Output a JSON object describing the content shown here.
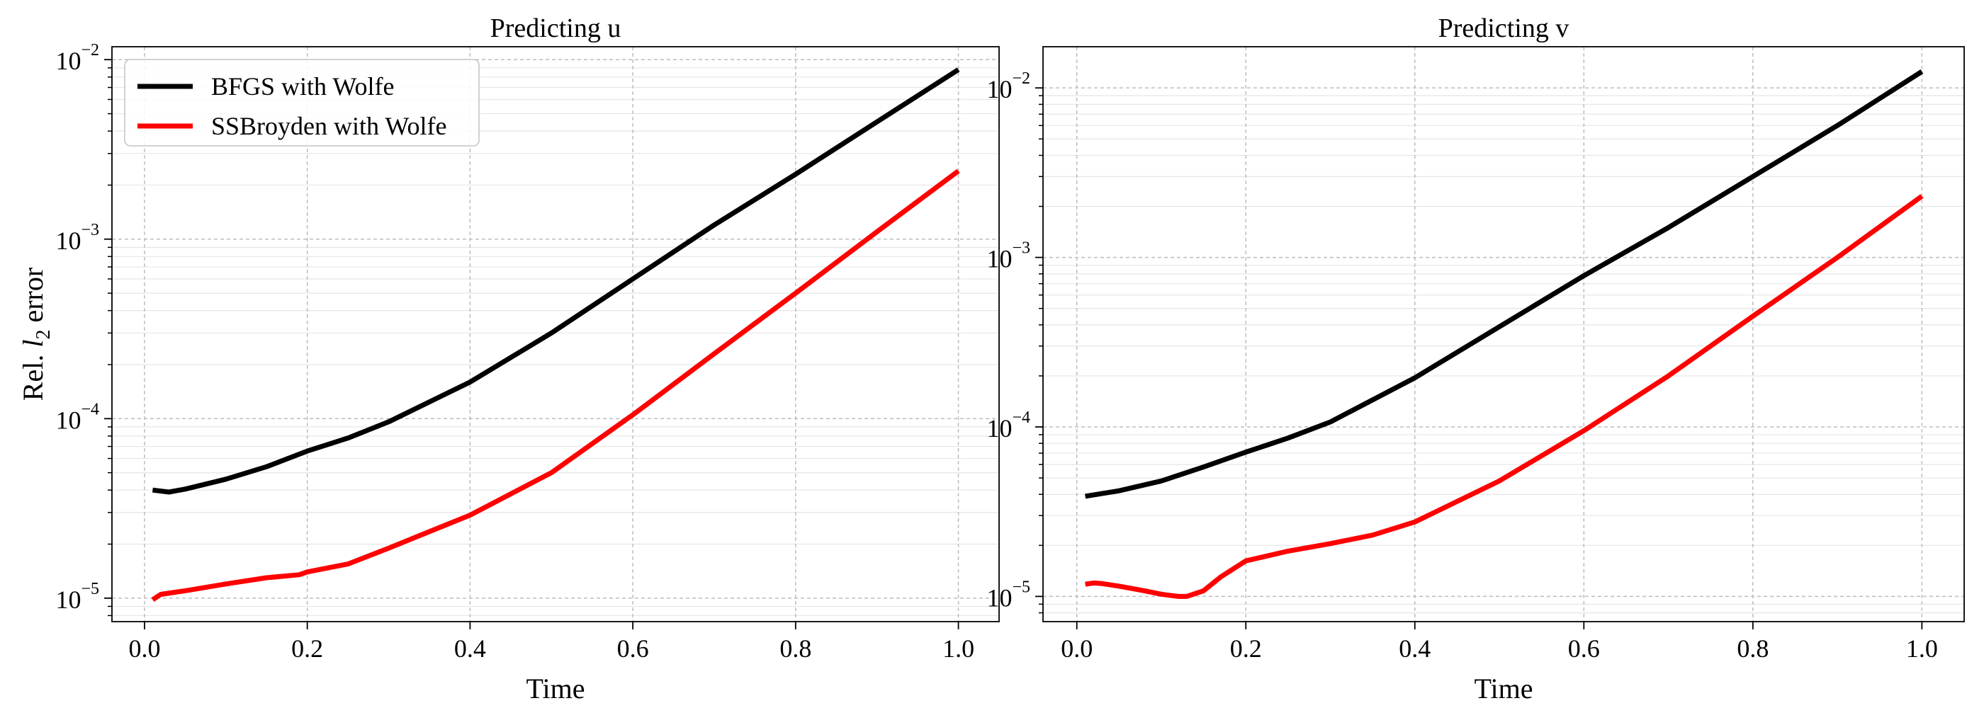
{
  "chart_data": [
    {
      "type": "line",
      "title": "Predicting u",
      "xlabel": "Time",
      "ylabel": {
        "prefix": "Rel. ",
        "italic": "l",
        "sub": "2",
        "suffix": " error"
      },
      "xlim": [
        -0.04,
        1.05
      ],
      "ylim": [
        7.4e-06,
        0.0118
      ],
      "yscale": "log",
      "xticks": [
        0.0,
        0.2,
        0.4,
        0.6,
        0.8,
        1.0
      ],
      "xtick_labels": [
        "0.0",
        "0.2",
        "0.4",
        "0.6",
        "0.8",
        "1.0"
      ],
      "yticks": [
        {
          "value": 1e-05,
          "base": "10",
          "exp": "−5"
        },
        {
          "value": 0.0001,
          "base": "10",
          "exp": "−4"
        },
        {
          "value": 0.001,
          "base": "10",
          "exp": "−3"
        },
        {
          "value": 0.01,
          "base": "10",
          "exp": "−2"
        }
      ],
      "grid": true,
      "legend": {
        "position": "top-left"
      },
      "series": [
        {
          "name": "BFGS with Wolfe",
          "color": "#000000",
          "x": [
            0.01,
            0.03,
            0.05,
            0.1,
            0.15,
            0.2,
            0.25,
            0.3,
            0.4,
            0.5,
            0.6,
            0.7,
            0.8,
            0.9,
            1.0
          ],
          "y": [
            4e-05,
            3.9e-05,
            4.05e-05,
            4.6e-05,
            5.4e-05,
            6.6e-05,
            7.8e-05,
            9.6e-05,
            0.00016,
            0.0003,
            0.0006,
            0.0012,
            0.0023,
            0.0045,
            0.0088
          ]
        },
        {
          "name": "SSBroyden with Wolfe",
          "color": "#ff0000",
          "x": [
            0.01,
            0.02,
            0.05,
            0.1,
            0.15,
            0.19,
            0.2,
            0.25,
            0.3,
            0.4,
            0.5,
            0.6,
            0.7,
            0.8,
            0.9,
            1.0
          ],
          "y": [
            9.8e-06,
            1.05e-05,
            1.1e-05,
            1.2e-05,
            1.3e-05,
            1.35e-05,
            1.4e-05,
            1.55e-05,
            1.9e-05,
            2.9e-05,
            5e-05,
            0.000105,
            0.00023,
            0.0005,
            0.0011,
            0.0024
          ]
        }
      ]
    },
    {
      "type": "line",
      "title": "Predicting v",
      "xlabel": "Time",
      "xlim": [
        -0.04,
        1.05
      ],
      "ylim": [
        7.1e-06,
        0.0175
      ],
      "yscale": "log",
      "xticks": [
        0.0,
        0.2,
        0.4,
        0.6,
        0.8,
        1.0
      ],
      "xtick_labels": [
        "0.0",
        "0.2",
        "0.4",
        "0.6",
        "0.8",
        "1.0"
      ],
      "yticks": [
        {
          "value": 1e-05,
          "base": "10",
          "exp": "−5"
        },
        {
          "value": 0.0001,
          "base": "10",
          "exp": "−4"
        },
        {
          "value": 0.001,
          "base": "10",
          "exp": "−3"
        },
        {
          "value": 0.01,
          "base": "10",
          "exp": "−2"
        }
      ],
      "grid": true,
      "series": [
        {
          "name": "BFGS with Wolfe",
          "color": "#000000",
          "x": [
            0.01,
            0.05,
            0.1,
            0.15,
            0.2,
            0.25,
            0.3,
            0.4,
            0.5,
            0.6,
            0.7,
            0.8,
            0.9,
            1.0
          ],
          "y": [
            3.9e-05,
            4.2e-05,
            4.8e-05,
            5.8e-05,
            7.1e-05,
            8.6e-05,
            0.000107,
            0.000195,
            0.00039,
            0.00078,
            0.0015,
            0.003,
            0.006,
            0.0125
          ]
        },
        {
          "name": "SSBroyden with Wolfe",
          "color": "#ff0000",
          "x": [
            0.01,
            0.02,
            0.03,
            0.05,
            0.08,
            0.1,
            0.12,
            0.13,
            0.15,
            0.17,
            0.2,
            0.25,
            0.3,
            0.35,
            0.4,
            0.5,
            0.6,
            0.7,
            0.8,
            0.9,
            1.0
          ],
          "y": [
            1.18e-05,
            1.2e-05,
            1.19e-05,
            1.15e-05,
            1.08e-05,
            1.03e-05,
            1e-05,
            1e-05,
            1.08e-05,
            1.3e-05,
            1.62e-05,
            1.85e-05,
            2.05e-05,
            2.3e-05,
            2.75e-05,
            4.8e-05,
            9.5e-05,
            0.0002,
            0.00045,
            0.001,
            0.0023
          ]
        }
      ]
    }
  ]
}
